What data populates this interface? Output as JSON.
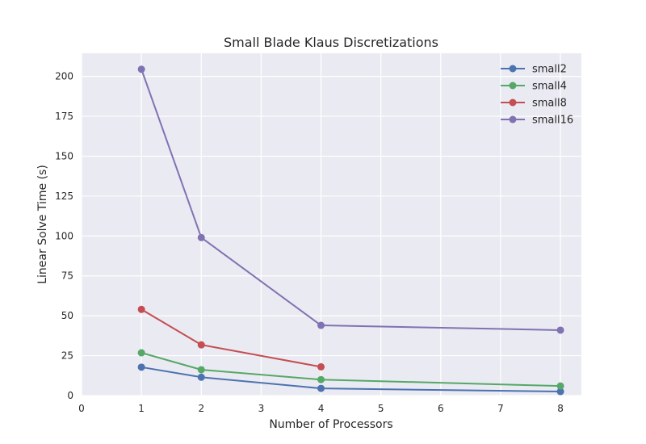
{
  "chart_data": {
    "type": "line",
    "title": "Small Blade Klaus Discretizations",
    "xlabel": "Number of Processors",
    "ylabel": "Linear Solve Time (s)",
    "xlim": [
      0,
      8.35
    ],
    "ylim": [
      0,
      214.5
    ],
    "xticks": [
      "0",
      "1",
      "2",
      "3",
      "4",
      "5",
      "6",
      "7",
      "8"
    ],
    "yticks": [
      "0",
      "25",
      "50",
      "75",
      "100",
      "125",
      "150",
      "175",
      "200"
    ],
    "grid": true,
    "legend_position": "top-right",
    "series": [
      {
        "name": "small2",
        "color": "#4c72b0",
        "x": [
          1,
          2,
          4,
          8
        ],
        "y": [
          17.8,
          11.5,
          4.5,
          2.5
        ]
      },
      {
        "name": "small4",
        "color": "#55a868",
        "x": [
          1,
          2,
          4,
          8
        ],
        "y": [
          26.8,
          16.2,
          10.0,
          6.0
        ]
      },
      {
        "name": "small8",
        "color": "#c44e52",
        "x": [
          1,
          2,
          4
        ],
        "y": [
          54.0,
          31.8,
          18.0
        ]
      },
      {
        "name": "small16",
        "color": "#8172b2",
        "x": [
          1,
          2,
          4,
          8
        ],
        "y": [
          204.5,
          99.0,
          44.0,
          41.0
        ]
      }
    ]
  }
}
